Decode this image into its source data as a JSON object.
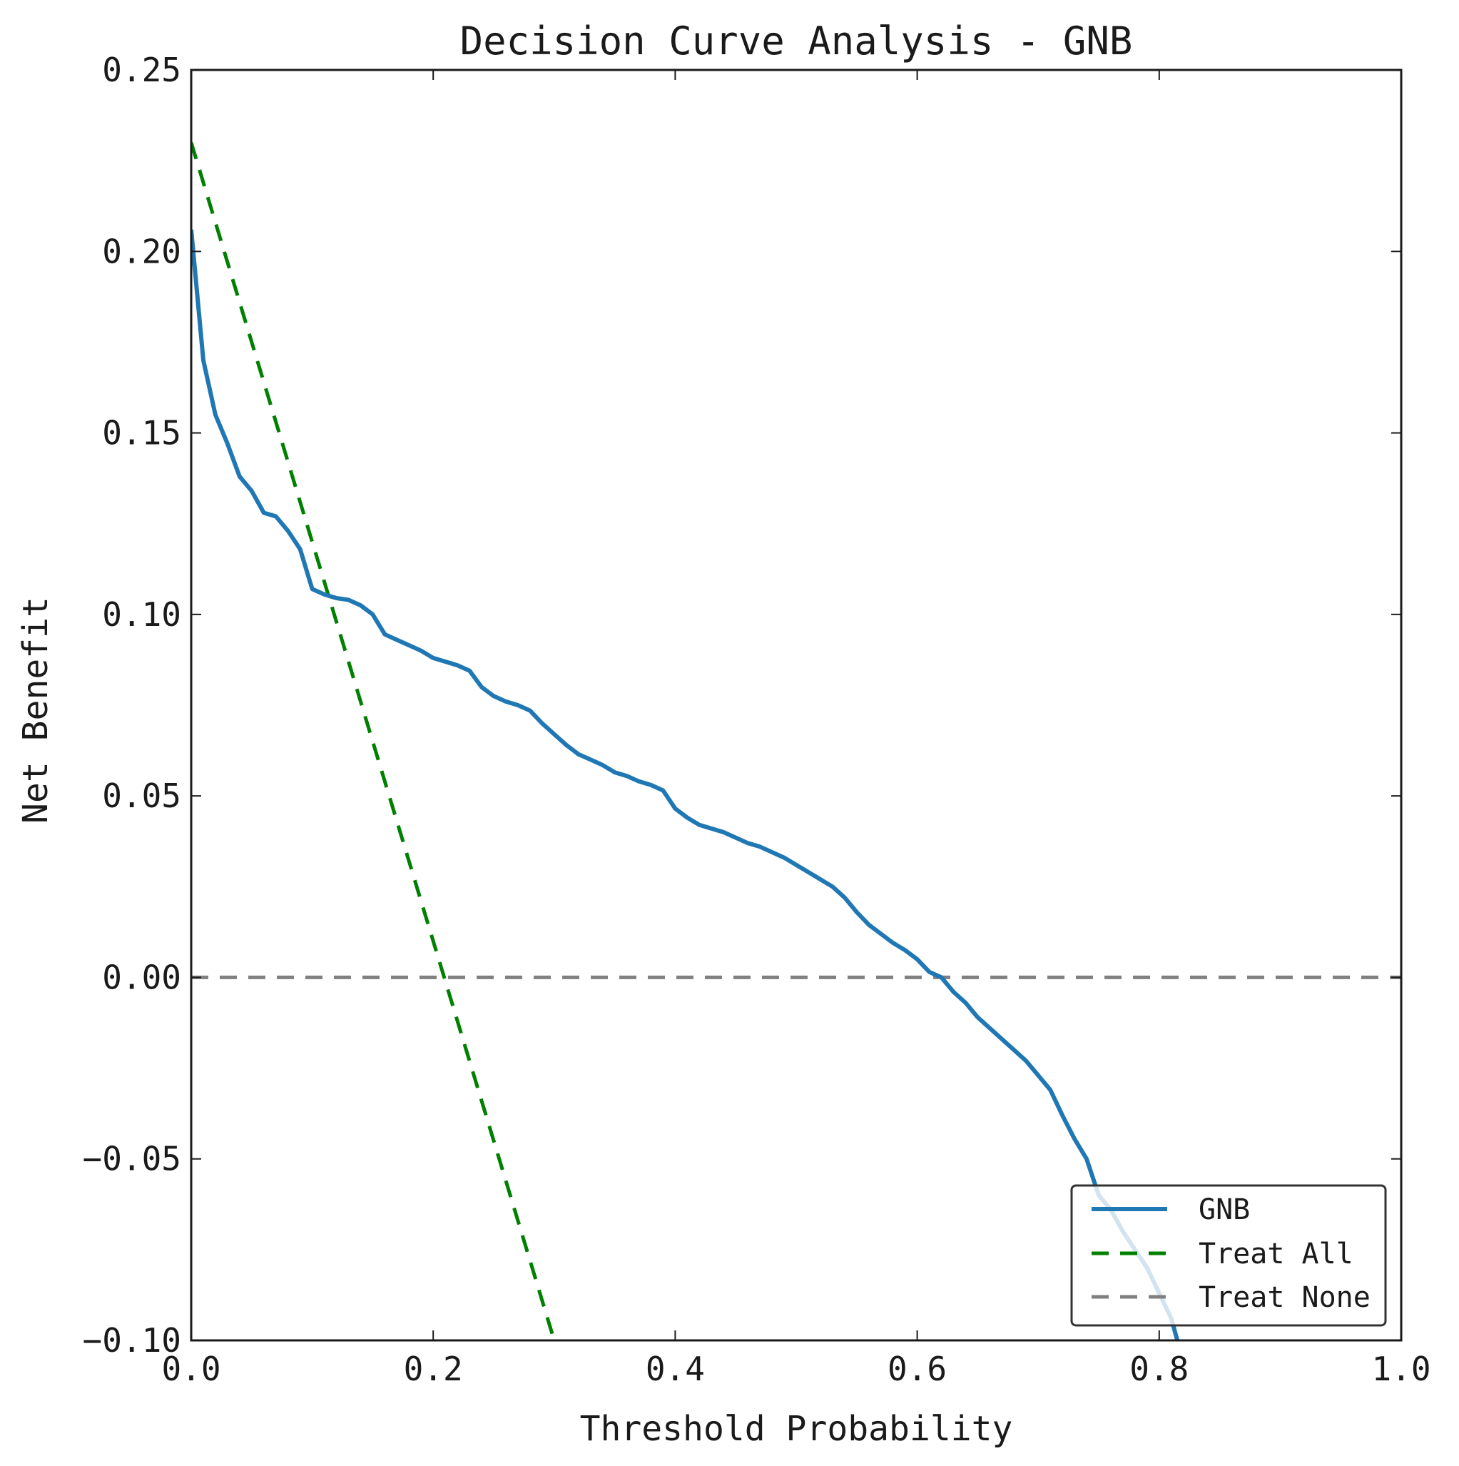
{
  "chart_data": {
    "type": "line",
    "title": "Decision Curve Analysis - GNB",
    "xlabel": "Threshold Probability",
    "ylabel": "Net Benefit",
    "xlim": [
      0.0,
      1.0
    ],
    "ylim": [
      -0.1,
      0.25
    ],
    "xticks": [
      "0.0",
      "0.2",
      "0.4",
      "0.6",
      "0.8",
      "1.0"
    ],
    "yticks": [
      "0.25",
      "0.20",
      "0.15",
      "0.10",
      "0.05",
      "0.00",
      "−0.05",
      "−0.10"
    ],
    "grid": false,
    "legend_position": "lower-right",
    "series": [
      {
        "name": "GNB",
        "style": "solid",
        "color": "#1f77b4",
        "points": [
          [
            0.0,
            0.206
          ],
          [
            0.01,
            0.17
          ],
          [
            0.02,
            0.155
          ],
          [
            0.03,
            0.147
          ],
          [
            0.04,
            0.138
          ],
          [
            0.05,
            0.134
          ],
          [
            0.06,
            0.128
          ],
          [
            0.07,
            0.127
          ],
          [
            0.08,
            0.123
          ],
          [
            0.09,
            0.118
          ],
          [
            0.1,
            0.107
          ],
          [
            0.11,
            0.1055
          ],
          [
            0.12,
            0.1045
          ],
          [
            0.13,
            0.104
          ],
          [
            0.14,
            0.1025
          ],
          [
            0.15,
            0.1
          ],
          [
            0.16,
            0.0945
          ],
          [
            0.17,
            0.093
          ],
          [
            0.18,
            0.0915
          ],
          [
            0.19,
            0.09
          ],
          [
            0.2,
            0.088
          ],
          [
            0.21,
            0.087
          ],
          [
            0.22,
            0.086
          ],
          [
            0.23,
            0.0845
          ],
          [
            0.24,
            0.08
          ],
          [
            0.25,
            0.0775
          ],
          [
            0.26,
            0.076
          ],
          [
            0.27,
            0.075
          ],
          [
            0.28,
            0.0735
          ],
          [
            0.29,
            0.07
          ],
          [
            0.3,
            0.067
          ],
          [
            0.31,
            0.064
          ],
          [
            0.32,
            0.0615
          ],
          [
            0.33,
            0.06
          ],
          [
            0.34,
            0.0585
          ],
          [
            0.35,
            0.0565
          ],
          [
            0.36,
            0.0555
          ],
          [
            0.37,
            0.054
          ],
          [
            0.38,
            0.053
          ],
          [
            0.39,
            0.0515
          ],
          [
            0.4,
            0.0465
          ],
          [
            0.41,
            0.044
          ],
          [
            0.42,
            0.042
          ],
          [
            0.43,
            0.041
          ],
          [
            0.44,
            0.04
          ],
          [
            0.45,
            0.0385
          ],
          [
            0.46,
            0.037
          ],
          [
            0.47,
            0.036
          ],
          [
            0.48,
            0.0345
          ],
          [
            0.49,
            0.033
          ],
          [
            0.5,
            0.031
          ],
          [
            0.51,
            0.029
          ],
          [
            0.52,
            0.027
          ],
          [
            0.53,
            0.025
          ],
          [
            0.54,
            0.022
          ],
          [
            0.55,
            0.018
          ],
          [
            0.56,
            0.0145
          ],
          [
            0.57,
            0.012
          ],
          [
            0.58,
            0.0095
          ],
          [
            0.59,
            0.0075
          ],
          [
            0.6,
            0.005
          ],
          [
            0.61,
            0.0015
          ],
          [
            0.62,
            0.0
          ],
          [
            0.63,
            -0.004
          ],
          [
            0.64,
            -0.007
          ],
          [
            0.65,
            -0.011
          ],
          [
            0.66,
            -0.014
          ],
          [
            0.67,
            -0.017
          ],
          [
            0.68,
            -0.02
          ],
          [
            0.69,
            -0.023
          ],
          [
            0.7,
            -0.027
          ],
          [
            0.71,
            -0.031
          ],
          [
            0.72,
            -0.038
          ],
          [
            0.73,
            -0.0445
          ],
          [
            0.74,
            -0.05
          ],
          [
            0.75,
            -0.06
          ],
          [
            0.76,
            -0.064
          ],
          [
            0.77,
            -0.07
          ],
          [
            0.78,
            -0.075
          ],
          [
            0.79,
            -0.08
          ],
          [
            0.8,
            -0.087
          ],
          [
            0.81,
            -0.094
          ],
          [
            0.815,
            -0.1
          ]
        ]
      },
      {
        "name": "Treat All",
        "style": "dashed",
        "color": "#008000",
        "points": [
          [
            0.0,
            0.23
          ],
          [
            0.3,
            -0.1
          ]
        ]
      },
      {
        "name": "Treat None",
        "style": "dashed",
        "color": "#808080",
        "points": [
          [
            0.0,
            0.0
          ],
          [
            1.0,
            0.0
          ]
        ]
      }
    ]
  }
}
